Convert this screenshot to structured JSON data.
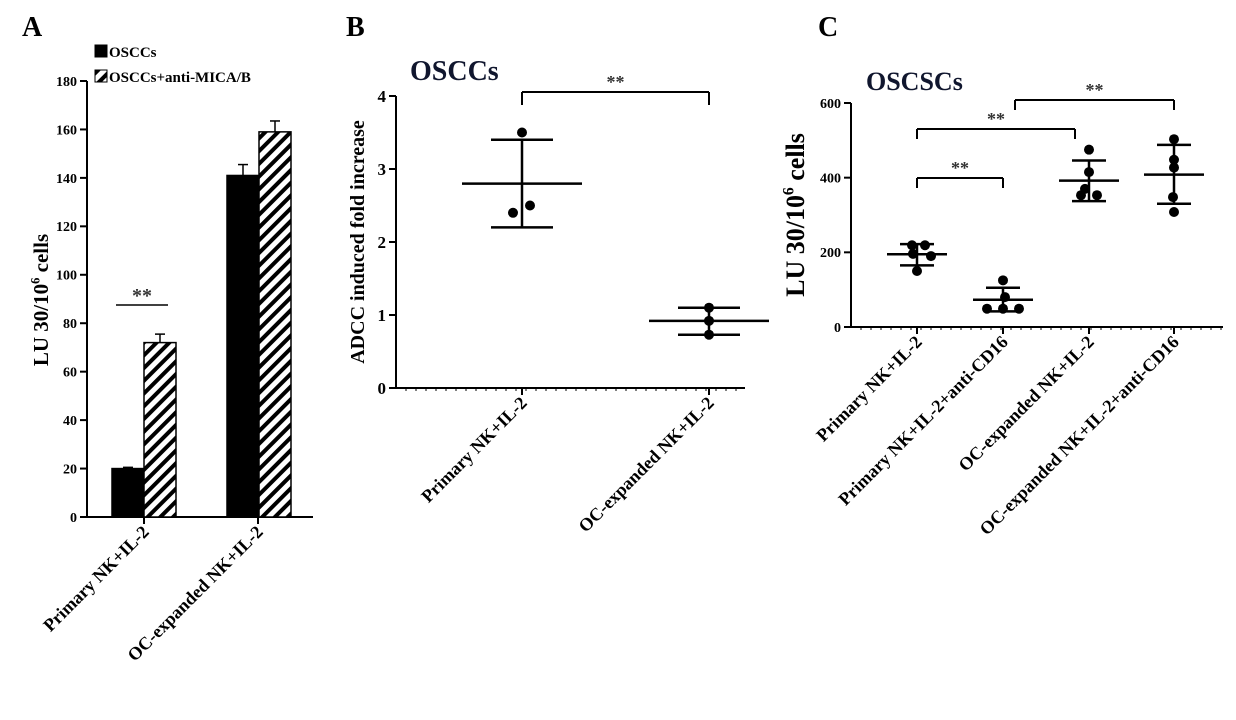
{
  "chart_data": [
    {
      "panel": "A",
      "type": "bar",
      "ylabel": "LU 30/10",
      "ylabel_sup": "6",
      "ylabel_suffix": " cells",
      "ylim": [
        0,
        180
      ],
      "yticks": [
        0,
        20,
        40,
        60,
        80,
        100,
        120,
        140,
        160,
        180
      ],
      "categories": [
        "Primary NK+IL-2",
        "OC-expanded NK+IL-2"
      ],
      "series": [
        {
          "name": "OSCCs",
          "values": [
            20,
            141
          ],
          "errors": [
            0.5,
            4.5
          ],
          "fill": "solid"
        },
        {
          "name": "OSCCs+anti-MICA/B",
          "values": [
            72,
            159
          ],
          "errors": [
            3.5,
            4.5
          ],
          "fill": "hatched"
        }
      ],
      "legend": "top-left",
      "annotations": [
        {
          "text": "**",
          "category": 0
        }
      ]
    },
    {
      "panel": "B",
      "type": "scatter",
      "title": "OSCCs",
      "ylabel": "ADCC induced fold increase",
      "ylim": [
        0,
        4
      ],
      "yticks": [
        0,
        1,
        2,
        3,
        4
      ],
      "categories": [
        "Primary NK+IL-2",
        "OC-expanded NK+IL-2"
      ],
      "groups": [
        {
          "points": [
            3.5,
            2.5,
            2.4
          ],
          "mean": 2.8,
          "sd": [
            2.2,
            3.4
          ]
        },
        {
          "points": [
            1.1,
            0.92,
            0.73
          ],
          "mean": 0.92,
          "sd": [
            0.73,
            1.1
          ]
        }
      ],
      "brackets": [
        {
          "from": 0,
          "to": 1,
          "text": "**"
        }
      ]
    },
    {
      "panel": "C",
      "type": "scatter",
      "title": "OSCSCs",
      "ylabel": "LU 30/10",
      "ylabel_sup": "6",
      "ylabel_suffix": " cells",
      "ylim": [
        0,
        600
      ],
      "yticks": [
        0,
        200,
        400,
        600
      ],
      "categories": [
        "Primary NK+IL-2",
        "Primary NK+IL-2+anti-CD16",
        "OC-expanded NK+IL-2",
        "OC-expanded NK+IL-2+anti-CD16"
      ],
      "groups": [
        {
          "points": [
            219,
            219,
            196,
            190,
            150
          ],
          "mean": 195,
          "sd": [
            165,
            222
          ]
        },
        {
          "points": [
            125,
            80,
            49,
            49,
            49
          ],
          "mean": 73,
          "sd": [
            42,
            105
          ]
        },
        {
          "points": [
            475,
            415,
            370,
            353,
            353
          ],
          "mean": 392,
          "sd": [
            337,
            446
          ]
        },
        {
          "points": [
            503,
            448,
            427,
            348,
            308
          ],
          "mean": 408,
          "sd": [
            330,
            488
          ]
        }
      ],
      "brackets": [
        {
          "from": 0,
          "to": 1,
          "text": "**"
        },
        {
          "from": 0,
          "to": 2,
          "text": "**"
        },
        {
          "from": 1,
          "to": 3,
          "text": "**"
        }
      ]
    }
  ]
}
